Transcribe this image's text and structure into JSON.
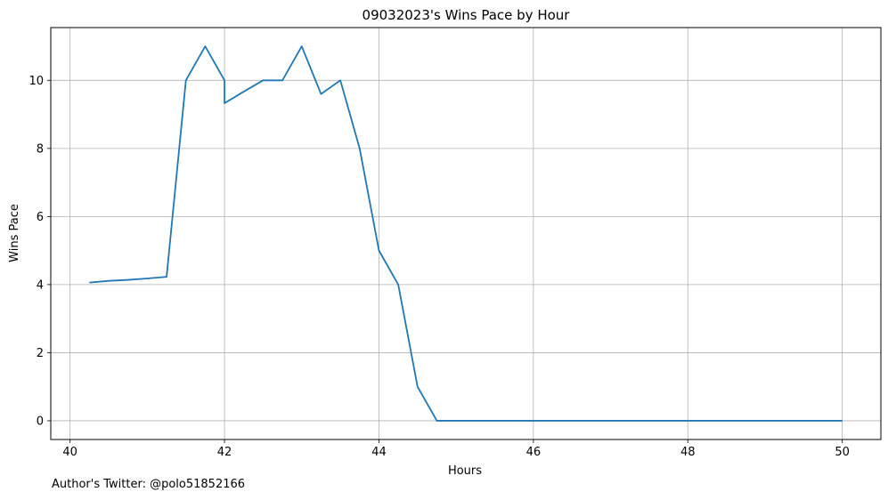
{
  "chart_data": {
    "type": "line",
    "title": "09032023's Wins Pace by Hour",
    "xlabel": "Hours",
    "ylabel": "Wins Pace",
    "xlim": [
      39.75,
      50.5
    ],
    "ylim": [
      -0.55,
      11.55
    ],
    "xticks": [
      40,
      42,
      44,
      46,
      48,
      50
    ],
    "yticks": [
      0,
      2,
      4,
      6,
      8,
      10
    ],
    "grid": true,
    "line_color": "#1f77b4",
    "series": [
      {
        "x": [
          40.25,
          40.5,
          40.75,
          41.0,
          41.25,
          41.5,
          41.75,
          42.0,
          42.0,
          42.25,
          42.5,
          42.75,
          43.0,
          43.25,
          43.5,
          43.75,
          44.0,
          44.25,
          44.5,
          44.75,
          45.0,
          45.25,
          45.5,
          45.75,
          46.0,
          46.25,
          46.5,
          46.75,
          47.0,
          47.25,
          47.5,
          47.75,
          48.0,
          48.25,
          48.5,
          48.75,
          49.0,
          49.25,
          49.5,
          49.75,
          50.0
        ],
        "values": [
          4.06,
          4.11,
          4.14,
          4.18,
          4.23,
          10.0,
          11.0,
          10.0,
          9.33,
          9.67,
          10.0,
          10.0,
          11.0,
          9.6,
          10.0,
          8.0,
          5.0,
          4.0,
          1.0,
          0.0,
          0.0,
          0.0,
          0.0,
          0.0,
          0.0,
          0.0,
          0.0,
          0.0,
          0.0,
          0.0,
          0.0,
          0.0,
          0.0,
          0.0,
          0.0,
          0.0,
          0.0,
          0.0,
          0.0,
          0.0,
          0.0
        ]
      }
    ]
  },
  "footer": {
    "author_note": "Author's Twitter: @polo51852166"
  }
}
